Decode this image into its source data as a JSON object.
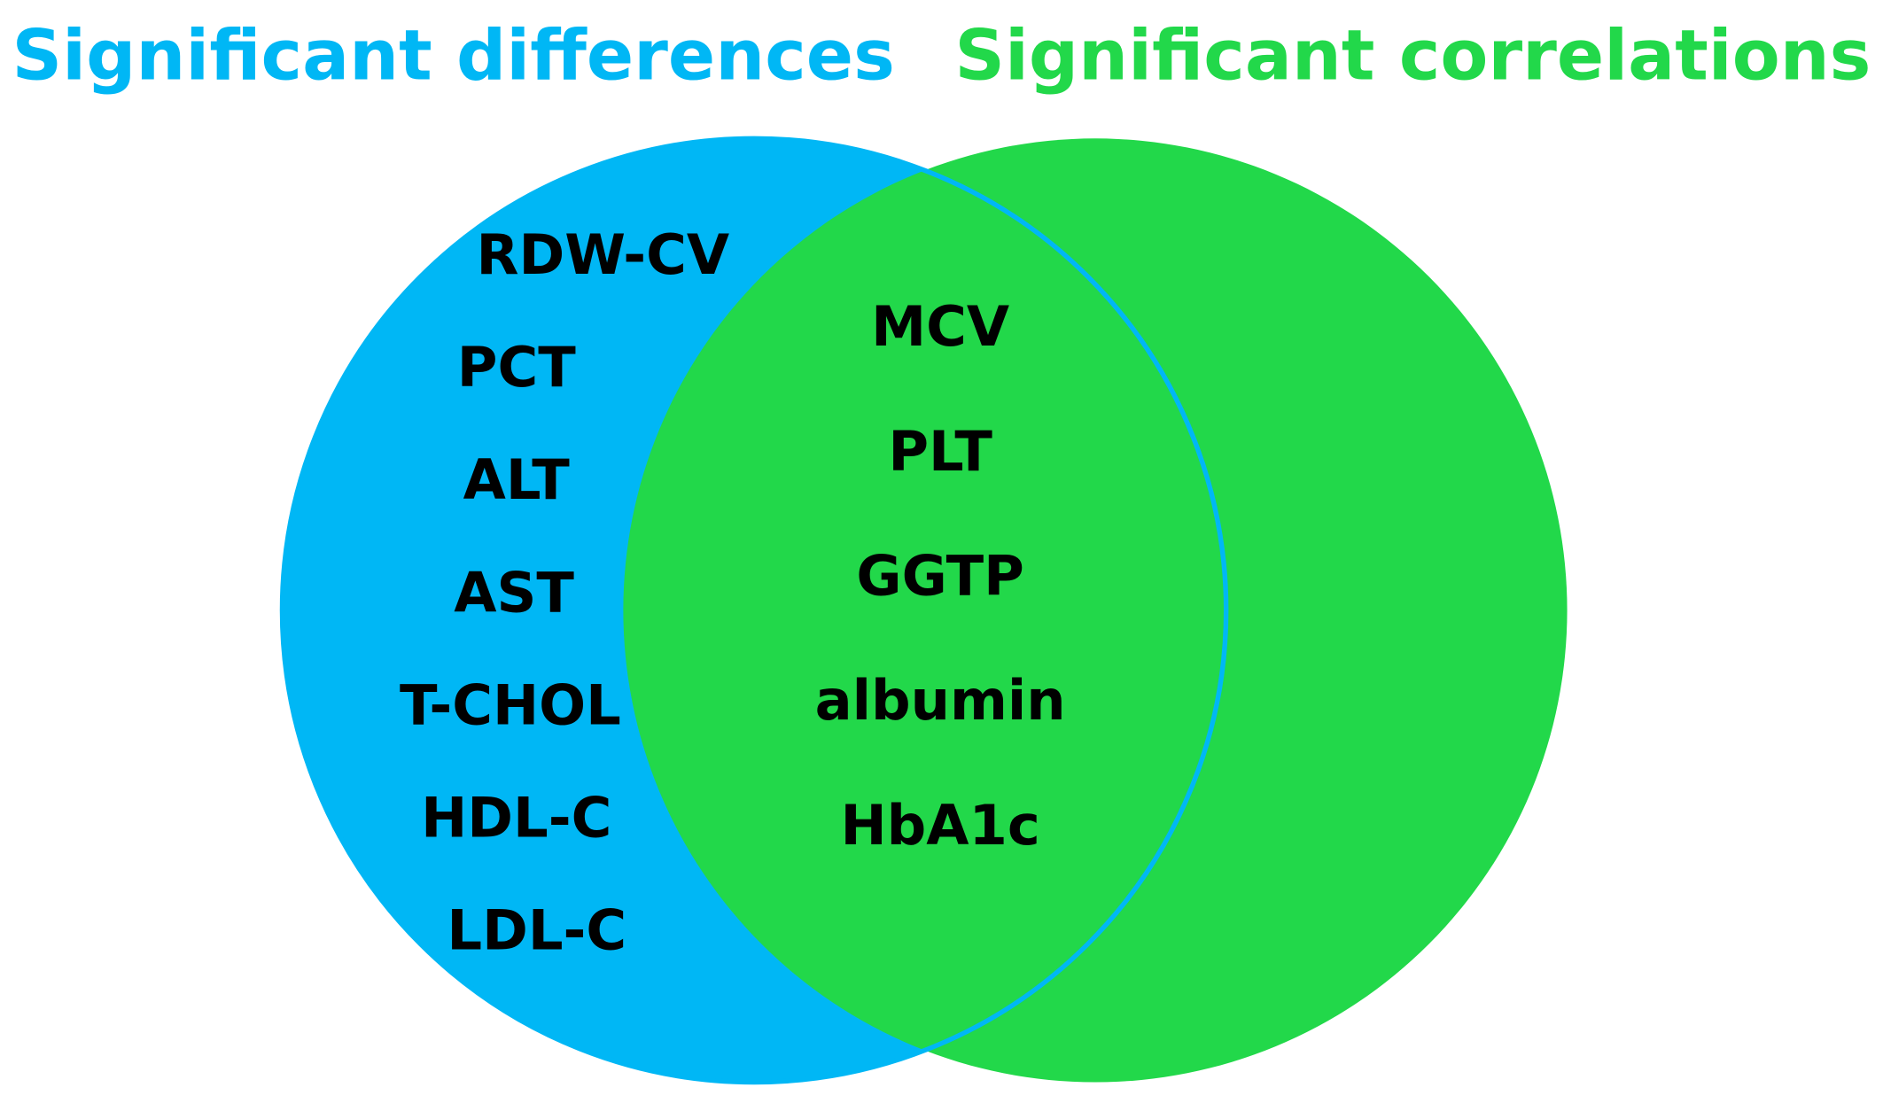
{
  "titles": {
    "left": "Significant differences",
    "right": "Significant correlations"
  },
  "sets": {
    "left_only": [
      "RDW-CV",
      "PCT",
      "ALT",
      "AST",
      "T-CHOL",
      "HDL-C",
      "LDL-C"
    ],
    "intersection": [
      "MCV",
      "PLT",
      "GGTP",
      "albumin",
      "HbA1c"
    ]
  }
}
